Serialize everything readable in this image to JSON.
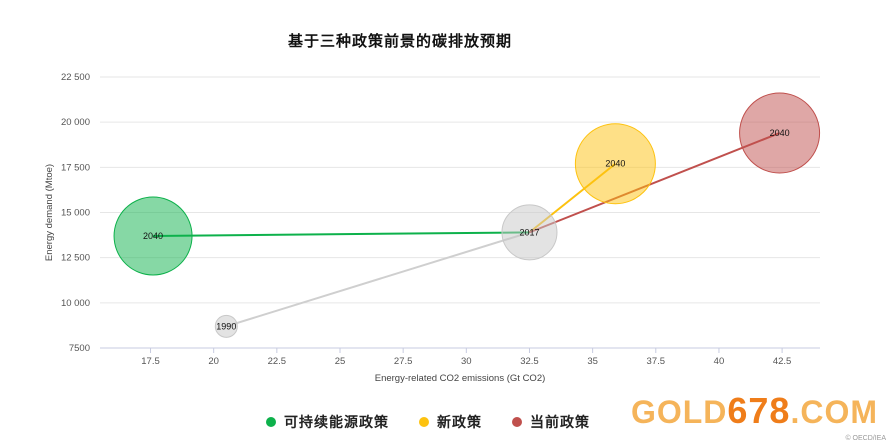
{
  "chart_data": {
    "type": "bubble",
    "title": "基于三种政策前景的碳排放预期",
    "xlabel": "Energy-related CO2 emissions (Gt CO2)",
    "ylabel": "Energy demand (Mtoe)",
    "xlim": [
      15.5,
      44
    ],
    "ylim": [
      7500,
      22500
    ],
    "x_ticks": [
      "17.5",
      "20",
      "22.5",
      "25",
      "27.5",
      "30",
      "32.5",
      "35",
      "37.5",
      "40",
      "42.5"
    ],
    "y_ticks": [
      "22 500",
      "20 000",
      "17 500",
      "15 000",
      "12 500",
      "10 000",
      "7500"
    ],
    "x_tick_values": [
      17.5,
      20,
      22.5,
      25,
      27.5,
      30,
      32.5,
      35,
      37.5,
      40,
      42.5
    ],
    "y_tick_values": [
      22500,
      20000,
      17500,
      15000,
      12500,
      10000,
      7500
    ],
    "grid": true,
    "legend_position": "bottom",
    "historical": [
      {
        "label": "1990",
        "x": 20.5,
        "y": 8700,
        "size": 0.22
      },
      {
        "label": "2017",
        "x": 32.5,
        "y": 13900,
        "size": 0.55
      }
    ],
    "historical_line": [
      {
        "x": 20.5,
        "y": 8700
      },
      {
        "x": 32.5,
        "y": 13900
      }
    ],
    "series": [
      {
        "name": "可持续能源政策",
        "color": "#0db14b",
        "points": [
          {
            "x": 32.5,
            "y": 13900
          },
          {
            "x": 17.6,
            "y": 13700,
            "label": "2040",
            "size": 0.78
          }
        ]
      },
      {
        "name": "新政策",
        "color": "#fdc20f",
        "points": [
          {
            "x": 32.5,
            "y": 13900
          },
          {
            "x": 35.9,
            "y": 17700,
            "label": "2040",
            "size": 0.8
          }
        ]
      },
      {
        "name": "当前政策",
        "color": "#c0504d",
        "points": [
          {
            "x": 32.5,
            "y": 13900
          },
          {
            "x": 42.4,
            "y": 19400,
            "label": "2040",
            "size": 0.8
          }
        ]
      }
    ]
  },
  "legend": [
    {
      "label": "可持续能源政策",
      "color": "#0db14b"
    },
    {
      "label": "新政策",
      "color": "#fdc20f"
    },
    {
      "label": "当前政策",
      "color": "#c0504d"
    }
  ],
  "watermark": {
    "gold": "GOLD",
    "num": "678",
    "com": ".COM"
  },
  "credit": "© OECD/IEA"
}
